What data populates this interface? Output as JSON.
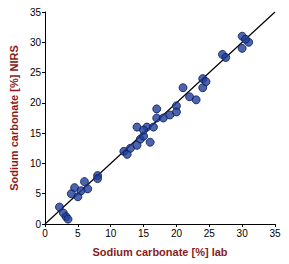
{
  "chart_data": {
    "type": "scatter",
    "x_label": "Sodium carbonate [%] lab",
    "y_label": "Sodium carbonate [%] NIRS",
    "xlim": [
      0,
      35
    ],
    "xticks": [
      0,
      5,
      10,
      15,
      20,
      25,
      30,
      35
    ],
    "ylim": [
      0,
      35
    ],
    "yticks": [
      0,
      5,
      10,
      15,
      20,
      25,
      30,
      35
    ],
    "grid": false,
    "series": [
      {
        "type": "scatter",
        "color": "#1f3d99",
        "marker": "circle",
        "x": [
          2.2,
          2.8,
          3.2,
          3.5,
          4.5,
          4.0,
          5.0,
          5.5,
          6.0,
          6.5,
          8.0,
          8.0,
          12.0,
          12.5,
          13.0,
          14.0,
          14.5,
          14.0,
          15.0,
          15.5,
          15.0,
          16.0,
          16.5,
          17.0,
          17.0,
          18.0,
          19.0,
          20.0,
          20.0,
          21.0,
          22.0,
          23.0,
          24.0,
          24.0,
          24.5,
          27.0,
          27.5,
          30.0,
          30.0,
          31.0,
          30.5
        ],
        "values": [
          2.8,
          1.8,
          1.2,
          0.8,
          6.0,
          5.0,
          4.5,
          5.5,
          7.0,
          5.8,
          8.0,
          7.5,
          12.0,
          11.5,
          12.5,
          16.0,
          14.0,
          13.0,
          14.5,
          16.0,
          15.5,
          13.5,
          16.0,
          17.5,
          19.0,
          17.5,
          18.0,
          19.5,
          18.5,
          22.5,
          21.0,
          20.5,
          22.5,
          24.0,
          23.5,
          28.0,
          27.5,
          31.0,
          29.0,
          30.0,
          30.5
        ]
      },
      {
        "type": "line",
        "color": "#000000",
        "line_style": "solid",
        "x": [
          0,
          35
        ],
        "values": [
          0,
          35
        ]
      }
    ]
  }
}
